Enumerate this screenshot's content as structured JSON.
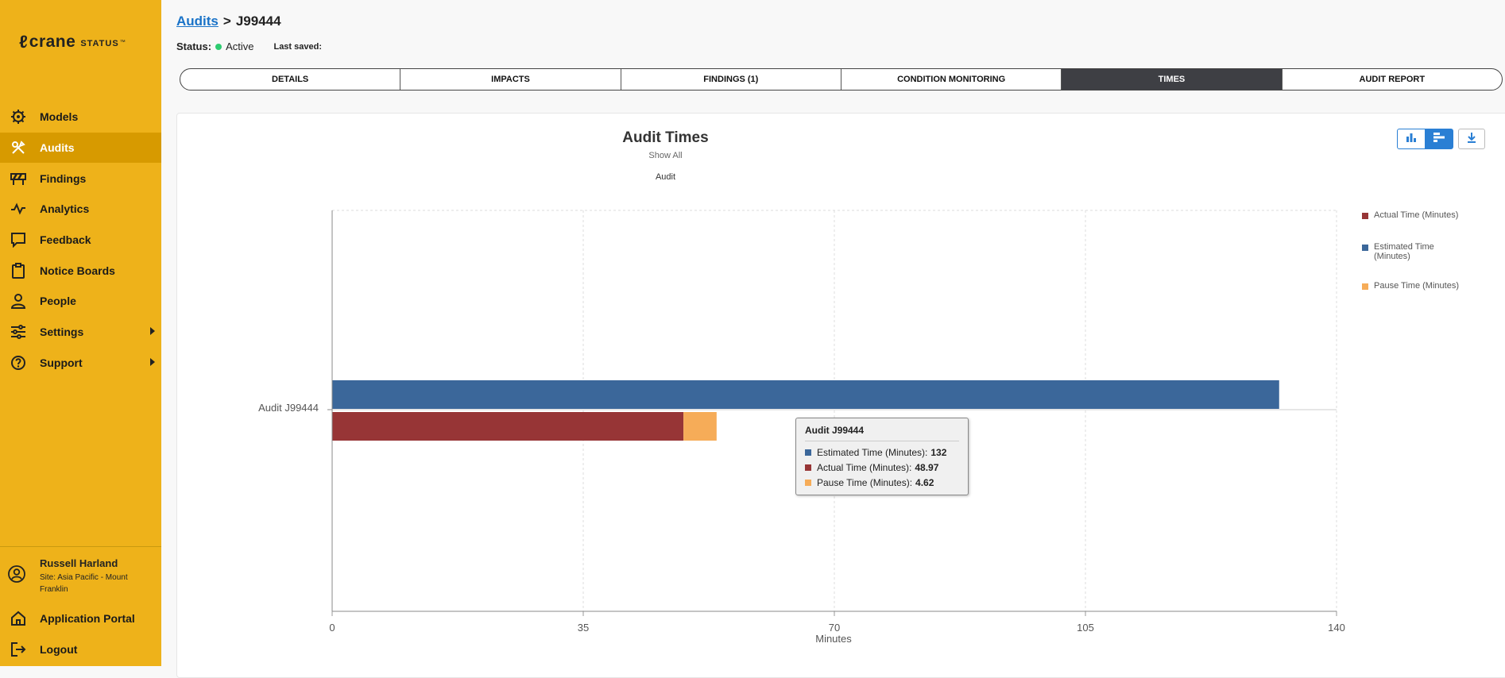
{
  "sidebar": {
    "logo": {
      "mark": "ℓ",
      "brand": "crane",
      "status": "STATUS",
      "tm": "™"
    },
    "items": [
      {
        "label": "Models"
      },
      {
        "label": "Audits"
      },
      {
        "label": "Findings"
      },
      {
        "label": "Analytics"
      },
      {
        "label": "Feedback"
      },
      {
        "label": "Notice Boards"
      },
      {
        "label": "People"
      },
      {
        "label": "Settings"
      },
      {
        "label": "Support"
      }
    ],
    "user": {
      "name": "Russell Harland",
      "site": "Site: Asia Pacific - Mount Franklin"
    },
    "footer": [
      {
        "label": "Application Portal"
      },
      {
        "label": "Logout"
      }
    ]
  },
  "header": {
    "breadcrumb_link": "Audits",
    "breadcrumb_sep": ">",
    "breadcrumb_current": "J99444",
    "status_label": "Status:",
    "status_value": "Active",
    "last_saved_label": "Last saved:"
  },
  "tabs": [
    {
      "label": "DETAILS"
    },
    {
      "label": "IMPACTS"
    },
    {
      "label": "FINDINGS (1)"
    },
    {
      "label": "CONDITION MONITORING"
    },
    {
      "label": "TIMES"
    },
    {
      "label": "AUDIT REPORT"
    }
  ],
  "chart_header": {
    "title": "Audit Times",
    "show_all": "Show All",
    "subtitle": "Audit"
  },
  "tooltip": {
    "title": "Audit J99444",
    "rows": [
      {
        "label": "Estimated Time (Minutes):",
        "value": "132"
      },
      {
        "label": "Actual Time (Minutes):",
        "value": "48.97"
      },
      {
        "label": "Pause Time (Minutes):",
        "value": "4.62"
      }
    ]
  },
  "colors": {
    "accent": "#eeb21a",
    "active_nav": "#d79a00",
    "estimated": "#3b679a",
    "actual": "#973536",
    "pause": "#f6ac58",
    "blue": "#2a7fd4"
  },
  "icons": [
    "models-gear-icon",
    "audits-tools-icon",
    "findings-barrier-icon",
    "analytics-pulse-icon",
    "feedback-chat-icon",
    "notice-boards-clipboard-icon",
    "people-person-icon",
    "settings-sliders-icon",
    "support-help-icon",
    "user-avatar-icon",
    "portal-home-icon",
    "logout-icon",
    "bar-chart-icon",
    "horizontal-bar-chart-icon",
    "download-icon"
  ],
  "chart_data": {
    "type": "bar",
    "orientation": "horizontal",
    "title": "Audit Times",
    "subtitle": "Audit",
    "categories": [
      "Audit J99444"
    ],
    "series": [
      {
        "name": "Actual Time (Minutes)",
        "values": [
          48.97
        ],
        "color": "#973536",
        "stack": "actual"
      },
      {
        "name": "Estimated Time (Minutes)",
        "values": [
          132
        ],
        "color": "#3b679a",
        "stack": "estimated"
      },
      {
        "name": "Pause Time (Minutes)",
        "values": [
          4.62
        ],
        "color": "#f6ac58",
        "stack": "actual"
      }
    ],
    "xlabel": "Minutes",
    "xlim": [
      0,
      140
    ],
    "xticks": [
      "0",
      "35",
      "70",
      "105",
      "140"
    ],
    "grid": true,
    "legend": "right"
  }
}
